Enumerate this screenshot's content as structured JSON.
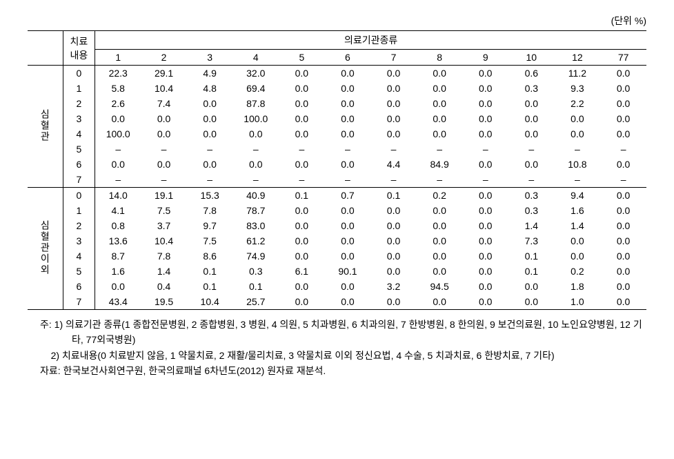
{
  "unit_label": "(단위 %)",
  "headers": {
    "treatment": "치료\n내용",
    "facility_types": "의료기관종류",
    "cols": [
      "1",
      "2",
      "3",
      "4",
      "5",
      "6",
      "7",
      "8",
      "9",
      "10",
      "12",
      "77"
    ]
  },
  "groups": [
    {
      "label": "심혈관",
      "rows": [
        {
          "t": "0",
          "v": [
            "22.3",
            "29.1",
            "4.9",
            "32.0",
            "0.0",
            "0.0",
            "0.0",
            "0.0",
            "0.0",
            "0.6",
            "11.2",
            "0.0"
          ]
        },
        {
          "t": "1",
          "v": [
            "5.8",
            "10.4",
            "4.8",
            "69.4",
            "0.0",
            "0.0",
            "0.0",
            "0.0",
            "0.0",
            "0.3",
            "9.3",
            "0.0"
          ]
        },
        {
          "t": "2",
          "v": [
            "2.6",
            "7.4",
            "0.0",
            "87.8",
            "0.0",
            "0.0",
            "0.0",
            "0.0",
            "0.0",
            "0.0",
            "2.2",
            "0.0"
          ]
        },
        {
          "t": "3",
          "v": [
            "0.0",
            "0.0",
            "0.0",
            "100.0",
            "0.0",
            "0.0",
            "0.0",
            "0.0",
            "0.0",
            "0.0",
            "0.0",
            "0.0"
          ]
        },
        {
          "t": "4",
          "v": [
            "100.0",
            "0.0",
            "0.0",
            "0.0",
            "0.0",
            "0.0",
            "0.0",
            "0.0",
            "0.0",
            "0.0",
            "0.0",
            "0.0"
          ]
        },
        {
          "t": "5",
          "v": [
            "–",
            "–",
            "–",
            "–",
            "–",
            "–",
            "–",
            "–",
            "–",
            "–",
            "–",
            "–"
          ]
        },
        {
          "t": "6",
          "v": [
            "0.0",
            "0.0",
            "0.0",
            "0.0",
            "0.0",
            "0.0",
            "4.4",
            "84.9",
            "0.0",
            "0.0",
            "10.8",
            "0.0"
          ]
        },
        {
          "t": "7",
          "v": [
            "–",
            "–",
            "–",
            "–",
            "–",
            "–",
            "–",
            "–",
            "–",
            "–",
            "–",
            "–"
          ]
        }
      ]
    },
    {
      "label": "심혈관이외",
      "rows": [
        {
          "t": "0",
          "v": [
            "14.0",
            "19.1",
            "15.3",
            "40.9",
            "0.1",
            "0.7",
            "0.1",
            "0.2",
            "0.0",
            "0.3",
            "9.4",
            "0.0"
          ]
        },
        {
          "t": "1",
          "v": [
            "4.1",
            "7.5",
            "7.8",
            "78.7",
            "0.0",
            "0.0",
            "0.0",
            "0.0",
            "0.0",
            "0.3",
            "1.6",
            "0.0"
          ]
        },
        {
          "t": "2",
          "v": [
            "0.8",
            "3.7",
            "9.7",
            "83.0",
            "0.0",
            "0.0",
            "0.0",
            "0.0",
            "0.0",
            "1.4",
            "1.4",
            "0.0"
          ]
        },
        {
          "t": "3",
          "v": [
            "13.6",
            "10.4",
            "7.5",
            "61.2",
            "0.0",
            "0.0",
            "0.0",
            "0.0",
            "0.0",
            "7.3",
            "0.0",
            "0.0"
          ]
        },
        {
          "t": "4",
          "v": [
            "8.7",
            "7.8",
            "8.6",
            "74.9",
            "0.0",
            "0.0",
            "0.0",
            "0.0",
            "0.0",
            "0.1",
            "0.0",
            "0.0"
          ]
        },
        {
          "t": "5",
          "v": [
            "1.6",
            "1.4",
            "0.1",
            "0.3",
            "6.1",
            "90.1",
            "0.0",
            "0.0",
            "0.0",
            "0.1",
            "0.2",
            "0.0"
          ]
        },
        {
          "t": "6",
          "v": [
            "0.0",
            "0.4",
            "0.1",
            "0.1",
            "0.0",
            "0.0",
            "3.2",
            "94.5",
            "0.0",
            "0.0",
            "1.8",
            "0.0"
          ]
        },
        {
          "t": "7",
          "v": [
            "43.4",
            "19.5",
            "10.4",
            "25.7",
            "0.0",
            "0.0",
            "0.0",
            "0.0",
            "0.0",
            "0.0",
            "1.0",
            "0.0"
          ]
        }
      ]
    }
  ],
  "notes": {
    "n1_prefix": "주: 1) ",
    "n1": "의료기관 종류(1 종합전문병원, 2 종합병원, 3 병원, 4 의원, 5 치과병원, 6 치과의원, 7 한방병원, 8 한의원, 9 보건의료원, 10 노인요양병원, 12 기타, 77외국병원)",
    "n2_prefix": "2) ",
    "n2": "치료내용(0 치료받지 않음, 1 약물치료, 2 재활/물리치료, 3 약물치료 이외 정신요법, 4 수술, 5 치과치료, 6 한방치료, 7 기타)",
    "src_prefix": "자료: ",
    "src": "한국보건사회연구원, 한국의료패널 6차년도(2012) 원자료 재분석."
  }
}
